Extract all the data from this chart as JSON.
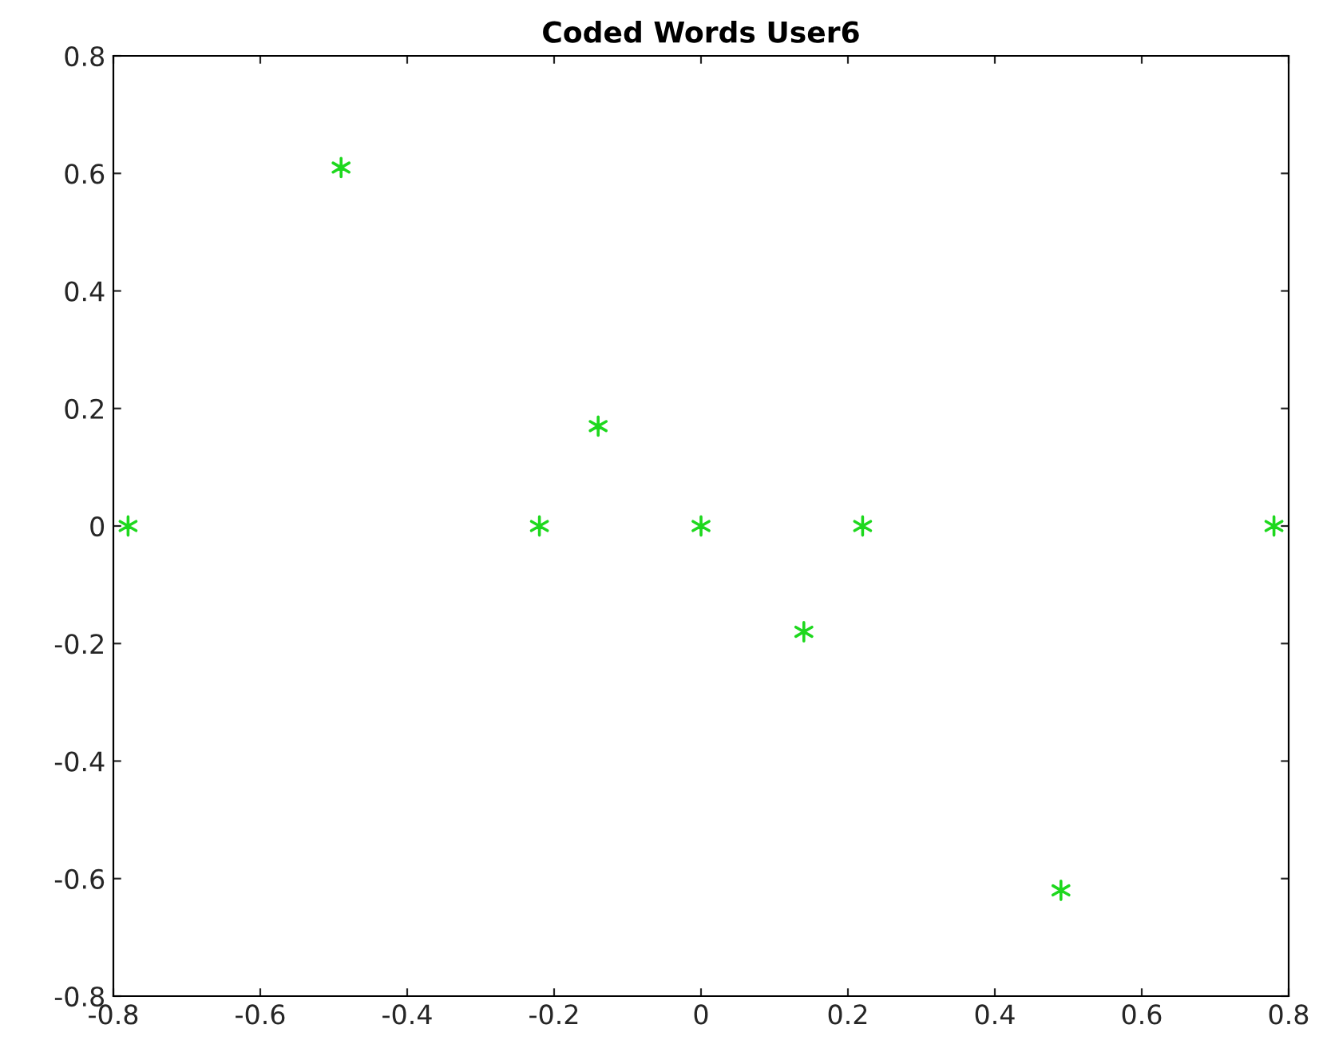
{
  "chart_data": {
    "type": "scatter",
    "title": "Coded Words User6",
    "x": [
      -0.78,
      -0.49,
      -0.22,
      -0.14,
      0,
      0.14,
      0.22,
      0.49,
      0.78
    ],
    "series": [
      {
        "color": "#1ed81e",
        "values": [
          0,
          0.61,
          0,
          0.17,
          0,
          -0.18,
          0,
          -0.62,
          0
        ]
      }
    ],
    "marker": "cross",
    "grid": false,
    "xlim": [
      -0.8,
      0.8
    ],
    "xticks": [
      -0.8,
      -0.6,
      -0.4,
      -0.2,
      0,
      0.2,
      0.4,
      0.6,
      0.8
    ],
    "ylim": [
      -0.8,
      0.8
    ],
    "yticks": [
      -0.8,
      -0.6,
      -0.4,
      -0.2,
      0,
      0.2,
      0.4,
      0.6,
      0.8
    ]
  }
}
